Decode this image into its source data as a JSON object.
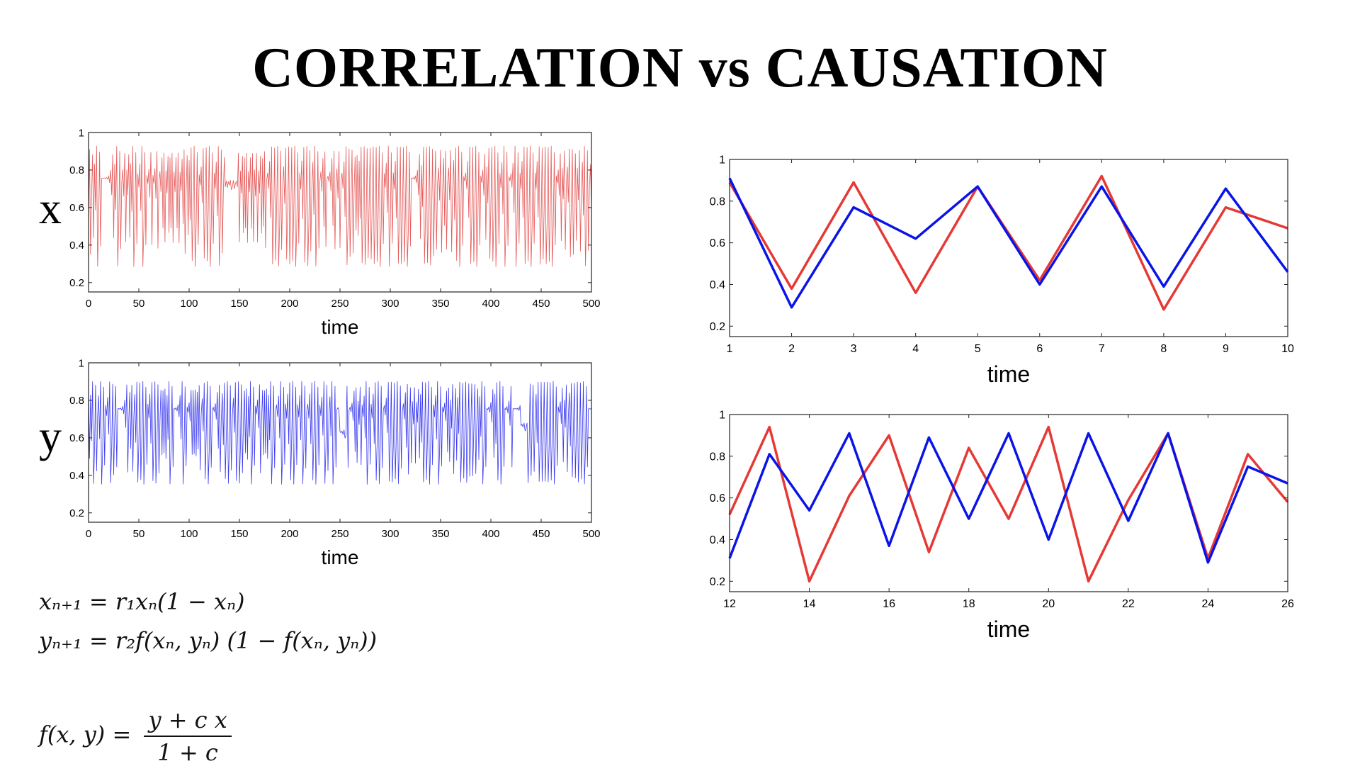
{
  "page": {
    "title": "CORRELATION vs CAUSATION"
  },
  "labels": {
    "x": "x",
    "y": "y"
  },
  "colors": {
    "red": "#e53935",
    "blue": "#0a14e6",
    "red_light": "#e55a5a",
    "blue_light": "#3b3bf0"
  },
  "equations": {
    "x_update": "xₙ₊₁ = r₁xₙ(1 − xₙ)",
    "y_update": "yₙ₊₁ = r₂f(xₙ, yₙ) (1 − f(xₙ, yₙ))",
    "f_lhs": "f(x, y) =",
    "f_num": "y + c x",
    "f_den": "1 + c"
  },
  "chart_data": [
    {
      "type": "line",
      "xlabel": "time",
      "xlim": [
        0,
        500
      ],
      "ylim": [
        0.15,
        1
      ],
      "xticks": [
        0,
        50,
        100,
        150,
        200,
        250,
        300,
        350,
        400,
        450,
        500
      ],
      "yticks": [
        0.2,
        0.4,
        0.6,
        0.8,
        1
      ],
      "series": [
        {
          "color": "#e55a5a",
          "signal": "chaotic logistic map x, 500 steps, range 0.2–0.95"
        }
      ]
    },
    {
      "type": "line",
      "xlabel": "time",
      "xlim": [
        0,
        500
      ],
      "ylim": [
        0.15,
        1
      ],
      "xticks": [
        0,
        50,
        100,
        150,
        200,
        250,
        300,
        350,
        400,
        450,
        500
      ],
      "yticks": [
        0.2,
        0.4,
        0.6,
        0.8,
        1
      ],
      "series": [
        {
          "color": "#3b3bf0",
          "signal": "chaotic coupled map y, 500 steps, range 0.28–0.92"
        }
      ]
    },
    {
      "type": "line",
      "xlabel": "time",
      "xlim": [
        1,
        10
      ],
      "ylim": [
        0.15,
        1
      ],
      "xticks": [
        1,
        2,
        3,
        4,
        5,
        6,
        7,
        8,
        9,
        10
      ],
      "yticks": [
        0.2,
        0.4,
        0.6,
        0.8,
        1
      ],
      "x": [
        1,
        2,
        3,
        4,
        5,
        6,
        7,
        8,
        9,
        10
      ],
      "series": [
        {
          "color": "#e53935",
          "values": [
            0.89,
            0.38,
            0.89,
            0.36,
            0.87,
            0.42,
            0.92,
            0.28,
            0.77,
            0.67
          ]
        },
        {
          "color": "#0a14e6",
          "values": [
            0.91,
            0.29,
            0.77,
            0.62,
            0.87,
            0.4,
            0.87,
            0.39,
            0.86,
            0.46
          ]
        }
      ]
    },
    {
      "type": "line",
      "xlabel": "time",
      "xlim": [
        12,
        26
      ],
      "ylim": [
        0.15,
        1
      ],
      "xticks": [
        12,
        14,
        16,
        18,
        20,
        22,
        24,
        26
      ],
      "yticks": [
        0.2,
        0.4,
        0.6,
        0.8,
        1
      ],
      "x": [
        12,
        13,
        14,
        15,
        16,
        17,
        18,
        19,
        20,
        21,
        22,
        23,
        24,
        25,
        26
      ],
      "series": [
        {
          "color": "#e53935",
          "values": [
            0.52,
            0.94,
            0.2,
            0.61,
            0.9,
            0.34,
            0.84,
            0.5,
            0.94,
            0.2,
            0.59,
            0.91,
            0.31,
            0.81,
            0.58
          ]
        },
        {
          "color": "#0a14e6",
          "values": [
            0.31,
            0.81,
            0.54,
            0.91,
            0.37,
            0.89,
            0.5,
            0.91,
            0.4,
            0.91,
            0.49,
            0.91,
            0.29,
            0.75,
            0.67
          ]
        }
      ]
    }
  ]
}
